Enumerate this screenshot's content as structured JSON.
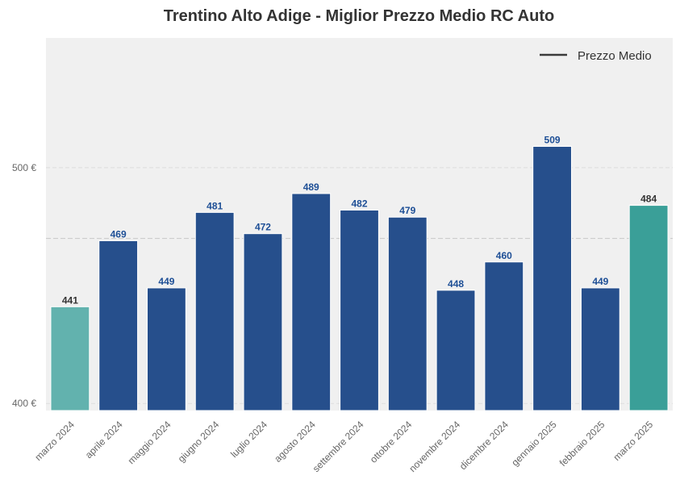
{
  "chart_data": {
    "type": "bar",
    "title": "Trentino Alto Adige - Miglior Prezzo Medio RC Auto",
    "xlabel": "",
    "ylabel": "",
    "ylim": [
      397,
      555
    ],
    "yticks": [
      {
        "value": 400,
        "label": "400 €"
      },
      {
        "value": 500,
        "label": "500 €"
      }
    ],
    "categories": [
      "marzo 2024",
      "aprile 2024",
      "maggio 2024",
      "giugno 2024",
      "luglio 2024",
      "agosto 2024",
      "settembre 2024",
      "ottobre 2024",
      "novembre 2024",
      "dicembre 2024",
      "gennaio 2025",
      "febbraio 2025",
      "marzo 2025"
    ],
    "values": [
      441,
      469,
      449,
      481,
      472,
      489,
      482,
      479,
      448,
      460,
      509,
      449,
      484
    ],
    "value_labels": [
      "441",
      "469",
      "449",
      "481",
      "472",
      "489",
      "482",
      "479",
      "448",
      "460",
      "509",
      "449",
      "484"
    ],
    "bar_colors": [
      "#62b2ae",
      "#264f8c",
      "#264f8c",
      "#264f8c",
      "#264f8c",
      "#264f8c",
      "#264f8c",
      "#264f8c",
      "#264f8c",
      "#264f8c",
      "#264f8c",
      "#264f8c",
      "#3a9f98"
    ],
    "label_colors": [
      "#333333",
      "#1e4f96",
      "#1e4f96",
      "#1e4f96",
      "#1e4f96",
      "#1e4f96",
      "#1e4f96",
      "#1e4f96",
      "#1e4f96",
      "#1e4f96",
      "#1e4f96",
      "#1e4f96",
      "#333333"
    ],
    "mean_line": {
      "value": 470,
      "label": "Prezzo Medio",
      "color": "#cccccc"
    },
    "legend": {
      "position": "top-right",
      "entries": [
        {
          "label": "Prezzo Medio",
          "color": "#3a3a3a"
        }
      ]
    },
    "grid": true,
    "background": "#f0f0f0"
  }
}
